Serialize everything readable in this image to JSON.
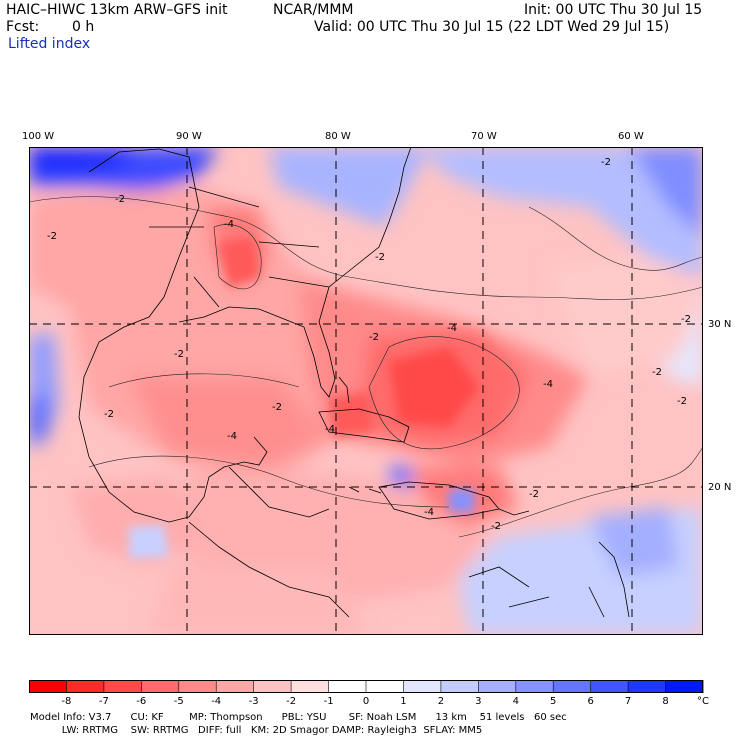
{
  "header": {
    "model_title": "HAIC–HIWC 13km ARW–GFS init",
    "org": "NCAR/MMM",
    "init_time": "Init: 00 UTC Thu 30 Jul 15",
    "fcst_label": "Fcst:",
    "fcst_value": "0 h",
    "valid_time": "Valid: 00 UTC Thu 30 Jul 15 (22 LDT Wed 29 Jul 15)",
    "field_name": "Lifted index"
  },
  "axes": {
    "lon_labels": [
      "100 W",
      "90 W",
      "80 W",
      "70 W",
      "60 W"
    ],
    "lat_labels": [
      "30 N",
      "20 N"
    ]
  },
  "contour_labels": [
    "-2",
    "-4"
  ],
  "colorbar": {
    "labels": [
      "-8",
      "-7",
      "-6",
      "-5",
      "-4",
      "-3",
      "-2",
      "-1",
      "0",
      "1",
      "2",
      "3",
      "4",
      "5",
      "6",
      "7",
      "8"
    ],
    "unit": "°C",
    "colors": [
      "#ff0000",
      "#ff2b2b",
      "#ff4a4a",
      "#ff6a6a",
      "#ff8a8a",
      "#ffa6a6",
      "#ffc3c3",
      "#ffe0e0",
      "#ffffff",
      "#e2e6ff",
      "#c3ccff",
      "#a4b0ff",
      "#8593ff",
      "#6476ff",
      "#4256ff",
      "#2037ff",
      "#0018ff"
    ]
  },
  "footer": {
    "line1": "Model Info: V3.7      CU: KF        MP: Thompson      PBL: YSU       SF: Noah LSM      13 km    51 levels   60 sec",
    "line2": "          LW: RRTMG    SW: RRTMG   DIFF: full   KM: 2D Smagor DAMP: Rayleigh3  SFLAY: MM5"
  }
}
